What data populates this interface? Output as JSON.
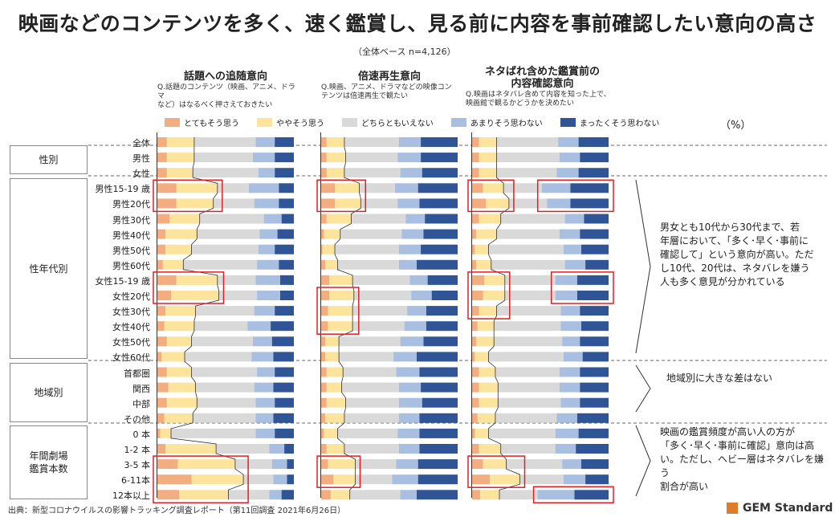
{
  "title": "映画などのコンテンツを多く、速く鑑賞し、見る前に内容を事前確認したい意向の高さ",
  "base_note": "（全体ベース n=4,126）",
  "unit": "（%）",
  "panels": [
    {
      "title_lines": [
        "話題への追随意向"
      ],
      "question_lines": [
        "Q.話題のコンテンツ（映画、アニメ、ドラマ",
        "など）はなるべく押さえておきたい"
      ]
    },
    {
      "title_lines": [
        "倍速再生意向"
      ],
      "question_lines": [
        "Q.映画、アニメ、ドラマなどの映像コン",
        "テンツは倍速再生で観たい"
      ]
    },
    {
      "title_lines": [
        "ネタばれ含めた鑑賞前の",
        "内容確認意向"
      ],
      "question_lines": [
        "Q.映画はネタバレ含めて内容を知った上で、",
        "映画館で観るかどうかを決めたい"
      ]
    }
  ],
  "legend": [
    {
      "label": "とてもそう思う",
      "color": "#f2ae80"
    },
    {
      "label": "ややそう思う",
      "color": "#fde49d"
    },
    {
      "label": "どちらともいえない",
      "color": "#d9d9d9"
    },
    {
      "label": "あまりそう思わない",
      "color": "#a9bfe2"
    },
    {
      "label": "まったくそう思わない",
      "color": "#2f5597"
    }
  ],
  "groups": [
    {
      "label": "性別"
    },
    {
      "label": "性年代別"
    },
    {
      "label": "地域別"
    },
    {
      "label": "年間劇場\n鑑賞本数"
    }
  ],
  "rows": [
    "全体",
    "男性",
    "女性",
    "男性15-19 歳",
    "男性20代",
    "男性30代",
    "男性40代",
    "男性50代",
    "男性60代",
    "女性15-19 歳",
    "女性20代",
    "女性30代",
    "女性40代",
    "女性50代",
    "女性60代",
    "首都圏",
    "関西",
    "中部",
    "その他",
    "0 本",
    "1-2 本",
    "3-5 本",
    "6-11本",
    "12本以上"
  ],
  "notes": [
    "男女とも10代から30代まで、若\n年層において、「多く･早く･事前に\n確認して」という意向が高い。ただ\nし10代、20代は、ネタバレを嫌う\n人も多く意見が分かれている",
    "地域別に大きな差はない",
    "映画の鑑賞頻度が高い人の方が\n「多く･早く･事前に確認」意向は高\nい。ただし、ヘビー層はネタバレを嫌う\n割合が高い"
  ],
  "footer": "出典：新型コロナウイルスの影響トラッキング調査レポート（第11回調査 2021年6月26日）",
  "logo": "GEM Standard",
  "chart_data": {
    "type": "stacked-bar-100",
    "categories": [
      "全体",
      "男性",
      "女性",
      "男性15-19 歳",
      "男性20代",
      "男性30代",
      "男性40代",
      "男性50代",
      "男性60代",
      "女性15-19 歳",
      "女性20代",
      "女性30代",
      "女性40代",
      "女性50代",
      "女性60代",
      "首都圏",
      "関西",
      "中部",
      "その他",
      "0 本",
      "1-2 本",
      "3-5 本",
      "6-11本",
      "12本以上"
    ],
    "series_names": [
      "とてもそう思う",
      "ややそう思う",
      "どちらともいえない",
      "あまりそう思わない",
      "まったくそう思わない"
    ],
    "panels": [
      {
        "title": "話題への追随意向",
        "values": [
          [
            7,
            20,
            45,
            14,
            14
          ],
          [
            7,
            20,
            43,
            16,
            14
          ],
          [
            7,
            19,
            48,
            12,
            14
          ],
          [
            14,
            30,
            23,
            22,
            11
          ],
          [
            14,
            27,
            30,
            18,
            11
          ],
          [
            9,
            22,
            47,
            13,
            9
          ],
          [
            6,
            23,
            46,
            13,
            12
          ],
          [
            6,
            19,
            49,
            12,
            14
          ],
          [
            4,
            15,
            54,
            16,
            11
          ],
          [
            14,
            30,
            28,
            18,
            10
          ],
          [
            10,
            35,
            28,
            17,
            10
          ],
          [
            6,
            22,
            43,
            15,
            14
          ],
          [
            5,
            22,
            39,
            17,
            17
          ],
          [
            7,
            18,
            45,
            14,
            16
          ],
          [
            3,
            17,
            49,
            16,
            15
          ],
          [
            7,
            18,
            48,
            13,
            14
          ],
          [
            8,
            20,
            43,
            14,
            15
          ],
          [
            7,
            22,
            43,
            14,
            14
          ],
          [
            5,
            21,
            46,
            13,
            15
          ],
          [
            2,
            8,
            62,
            14,
            14
          ],
          [
            6,
            37,
            39,
            11,
            7
          ],
          [
            15,
            42,
            27,
            11,
            5
          ],
          [
            25,
            38,
            22,
            10,
            5
          ],
          [
            16,
            36,
            30,
            9,
            9
          ]
        ]
      },
      {
        "title": "倍速再生意向",
        "values": [
          [
            4,
            13,
            40,
            16,
            27
          ],
          [
            4,
            14,
            38,
            17,
            27
          ],
          [
            4,
            13,
            41,
            16,
            26
          ],
          [
            10,
            18,
            26,
            17,
            29
          ],
          [
            10,
            19,
            27,
            16,
            28
          ],
          [
            4,
            18,
            40,
            14,
            24
          ],
          [
            2,
            12,
            45,
            16,
            25
          ],
          [
            1,
            9,
            47,
            16,
            27
          ],
          [
            3,
            9,
            45,
            13,
            30
          ],
          [
            6,
            17,
            42,
            13,
            22
          ],
          [
            6,
            18,
            42,
            15,
            19
          ],
          [
            5,
            18,
            40,
            14,
            23
          ],
          [
            5,
            18,
            38,
            16,
            23
          ],
          [
            3,
            10,
            45,
            17,
            25
          ],
          [
            3,
            10,
            40,
            17,
            30
          ],
          [
            4,
            12,
            39,
            17,
            28
          ],
          [
            4,
            11,
            42,
            16,
            27
          ],
          [
            4,
            14,
            39,
            17,
            26
          ],
          [
            3,
            14,
            40,
            15,
            28
          ],
          [
            2,
            10,
            44,
            16,
            28
          ],
          [
            4,
            13,
            40,
            15,
            28
          ],
          [
            5,
            20,
            30,
            16,
            29
          ],
          [
            9,
            16,
            27,
            19,
            29
          ],
          [
            7,
            14,
            37,
            12,
            30
          ]
        ]
      },
      {
        "title": "ネタばれ含めた鑑賞前の内容確認意向",
        "values": [
          [
            5,
            13,
            45,
            15,
            22
          ],
          [
            5,
            13,
            46,
            15,
            21
          ],
          [
            5,
            13,
            44,
            16,
            22
          ],
          [
            8,
            15,
            28,
            21,
            28
          ],
          [
            10,
            17,
            28,
            17,
            28
          ],
          [
            5,
            16,
            47,
            14,
            18
          ],
          [
            3,
            15,
            46,
            15,
            21
          ],
          [
            2,
            10,
            55,
            13,
            20
          ],
          [
            3,
            11,
            54,
            15,
            17
          ],
          [
            9,
            15,
            37,
            16,
            23
          ],
          [
            8,
            16,
            37,
            16,
            23
          ],
          [
            5,
            13,
            47,
            14,
            21
          ],
          [
            4,
            12,
            49,
            15,
            20
          ],
          [
            3,
            13,
            50,
            13,
            21
          ],
          [
            2,
            10,
            55,
            14,
            19
          ],
          [
            5,
            12,
            47,
            15,
            21
          ],
          [
            5,
            14,
            45,
            15,
            21
          ],
          [
            5,
            14,
            46,
            14,
            21
          ],
          [
            4,
            13,
            45,
            15,
            23
          ],
          [
            2,
            10,
            49,
            17,
            22
          ],
          [
            5,
            16,
            40,
            15,
            24
          ],
          [
            8,
            17,
            41,
            14,
            20
          ],
          [
            13,
            22,
            32,
            16,
            17
          ],
          [
            6,
            14,
            28,
            27,
            25
          ]
        ]
      }
    ]
  }
}
